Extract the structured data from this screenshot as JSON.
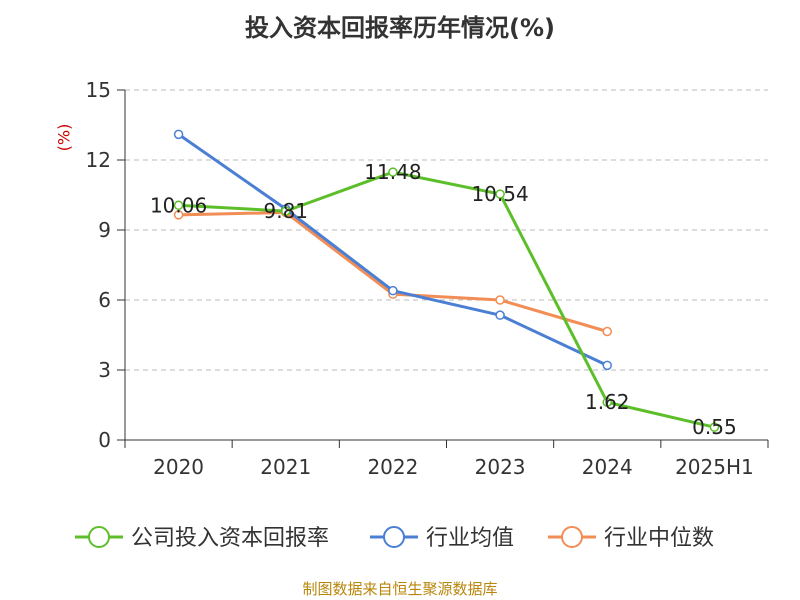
{
  "chart_data": {
    "type": "line",
    "title": "投入资本回报率历年情况(%)",
    "ylabel": "(%)",
    "categories": [
      "2020",
      "2021",
      "2022",
      "2023",
      "2024",
      "2025H1"
    ],
    "ylim": [
      0,
      15
    ],
    "yticks": [
      0,
      3,
      6,
      9,
      12,
      15
    ],
    "grid": true,
    "legend_position": "bottom",
    "series": [
      {
        "name": "公司投入资本回报率",
        "color": "#5cbf2a",
        "values": [
          10.06,
          9.81,
          11.48,
          10.54,
          1.62,
          0.55
        ],
        "labels": [
          "10.06",
          "9.81",
          "11.48",
          "10.54",
          "1.62",
          "0.55"
        ]
      },
      {
        "name": "行业均值",
        "color": "#4a7fd4",
        "values": [
          13.1,
          9.9,
          6.4,
          5.35,
          3.2,
          null
        ]
      },
      {
        "name": "行业中位数",
        "color": "#f28d55",
        "values": [
          9.65,
          9.75,
          6.25,
          6.0,
          4.65,
          null
        ]
      }
    ]
  },
  "source": "制图数据来自恒生聚源数据库"
}
